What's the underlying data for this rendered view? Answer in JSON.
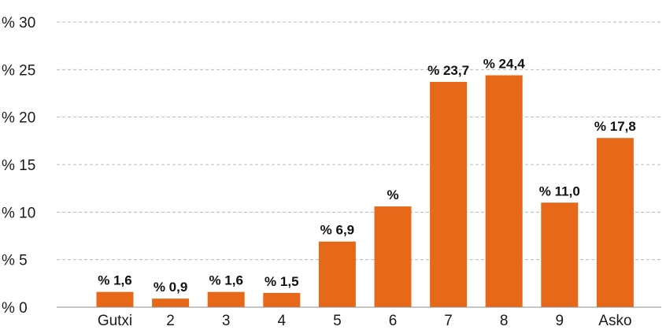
{
  "chart_data": {
    "type": "bar",
    "title": "",
    "xlabel": "",
    "ylabel": "",
    "categories": [
      "Gutxi",
      "2",
      "3",
      "4",
      "5",
      "6",
      "7",
      "8",
      "9",
      "Asko"
    ],
    "values": [
      1.6,
      0.9,
      1.6,
      1.5,
      6.9,
      10.6,
      23.7,
      24.4,
      11.0,
      17.8
    ],
    "data_labels": [
      "% 1,6",
      "% 0,9",
      "% 1,6",
      "% 1,5",
      "% 6,9",
      "%",
      "% 23,7",
      "% 24,4",
      "% 11,0",
      "% 17,8"
    ],
    "ylim": [
      0,
      30
    ],
    "y_ticks": [
      0,
      5,
      10,
      15,
      20,
      25,
      30
    ],
    "y_tick_labels": [
      "% 0",
      "% 5",
      "% 10",
      "% 15",
      "% 20",
      "% 25",
      "% 30"
    ],
    "grid": true,
    "legend": "none",
    "bar_color": "#E8681A"
  }
}
